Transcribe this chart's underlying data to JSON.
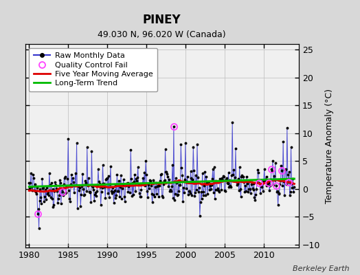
{
  "title": "PINEY",
  "subtitle": "49.030 N, 96.020 W (Canada)",
  "ylabel": "Temperature Anomaly (°C)",
  "credit": "Berkeley Earth",
  "xlim": [
    1979.5,
    2014.5
  ],
  "ylim": [
    -10.5,
    26
  ],
  "yticks": [
    -10,
    -5,
    0,
    5,
    10,
    15,
    20,
    25
  ],
  "xticks": [
    1980,
    1985,
    1990,
    1995,
    2000,
    2005,
    2010
  ],
  "bg_color": "#d8d8d8",
  "plot_bg_color": "#f0f0f0",
  "raw_color": "#3333cc",
  "raw_marker_color": "#000000",
  "qc_color": "#ff44ff",
  "moving_avg_color": "#dd0000",
  "trend_color": "#00bb00",
  "seed": 42,
  "n_years": 34,
  "start_year": 1980,
  "months_per_year": 12
}
